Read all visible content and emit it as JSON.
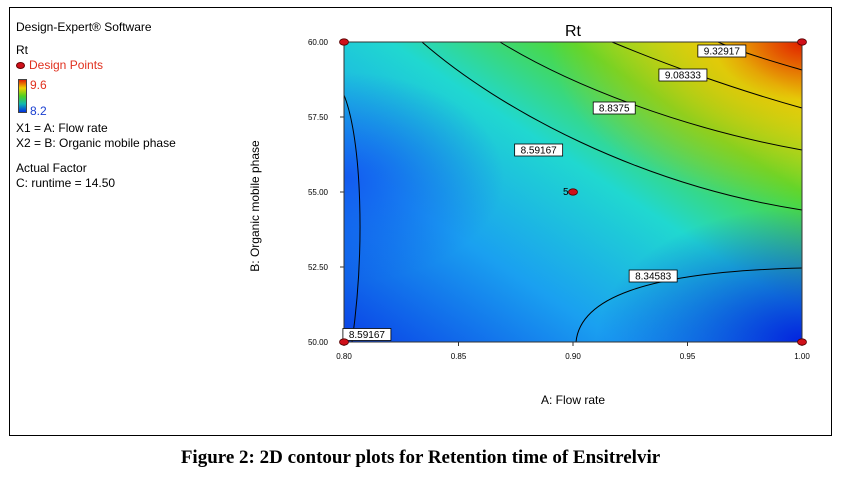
{
  "software_label": "Design-Expert® Software",
  "response_label": "Rt",
  "design_points_label": "Design Points",
  "colorbar": {
    "max_label": "9.6",
    "min_label": "8.2"
  },
  "factors": [
    "X1 = A: Flow rate",
    "X2 = B: Organic mobile phase"
  ],
  "actual_factor_heading": "Actual Factor",
  "actual_factor_value": "C: runtime = 14.50",
  "caption": "Figure 2: 2D contour plots for Retention time of Ensitrelvir",
  "colors": {
    "high": "#e02000",
    "mid": "#50d020",
    "low": "#0030e0",
    "point": "#d0101a"
  },
  "chart_data": {
    "type": "heatmap",
    "title": "Rt",
    "xlabel": "A: Flow rate",
    "ylabel": "B: Organic mobile phase",
    "xlim": [
      0.8,
      1.0
    ],
    "ylim": [
      50.0,
      60.0
    ],
    "x_ticks": [
      "0.80",
      "0.85",
      "0.90",
      "0.95",
      "1.00"
    ],
    "y_ticks": [
      "50.00",
      "52.50",
      "55.00",
      "57.50",
      "60.00"
    ],
    "z_range": [
      8.2,
      9.6
    ],
    "contour_labels": [
      {
        "label": "9.32917",
        "x": 0.965,
        "y": 59.7
      },
      {
        "label": "9.08333",
        "x": 0.948,
        "y": 58.9
      },
      {
        "label": "8.8375",
        "x": 0.918,
        "y": 57.8
      },
      {
        "label": "8.59167",
        "x": 0.885,
        "y": 56.4
      },
      {
        "label": "8.34583",
        "x": 0.935,
        "y": 52.2
      },
      {
        "label": "8.59167",
        "x": 0.81,
        "y": 50.25
      }
    ],
    "design_points": [
      {
        "x": 0.8,
        "y": 60.0
      },
      {
        "x": 1.0,
        "y": 60.0
      },
      {
        "x": 0.8,
        "y": 50.0
      },
      {
        "x": 1.0,
        "y": 50.0
      },
      {
        "x": 0.9,
        "y": 55.0,
        "label": "5"
      }
    ]
  }
}
